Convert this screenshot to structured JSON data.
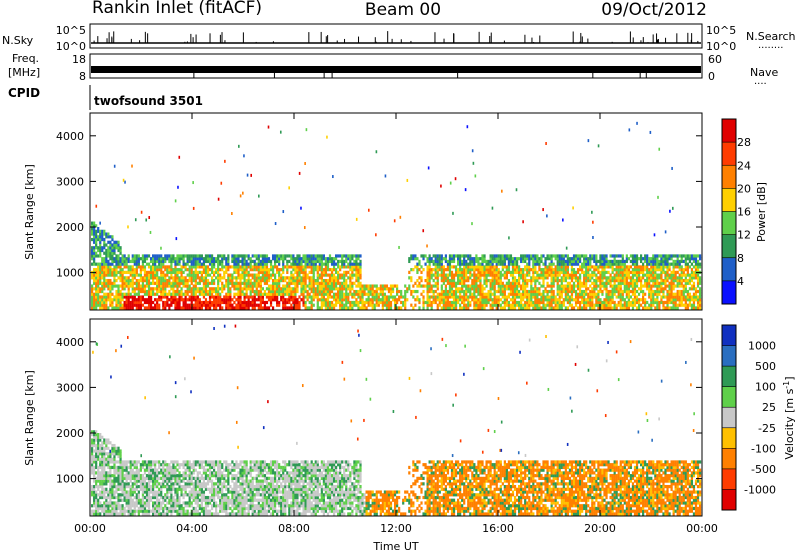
{
  "header": {
    "station": "Rankin Inlet (fitACF)",
    "beam": "Beam 00",
    "date": "09/Oct/2012"
  },
  "panels": {
    "nsky": {
      "label": "N.Sky",
      "ticks": [
        "10^5",
        "10^0"
      ]
    },
    "nsearch": {
      "label": "N.Search",
      "ticks": [
        "10^5",
        "10^0"
      ],
      "dots": "........"
    },
    "freq": {
      "label1": "Freq.",
      "label2": "[MHz]",
      "ticks": [
        "18",
        "8"
      ]
    },
    "nave": {
      "label": "Nave",
      "ticks": [
        "60",
        "0"
      ],
      "dots": "...."
    },
    "cpid": {
      "label": "CPID",
      "value": "twofsound 3501"
    }
  },
  "chart_data": [
    {
      "type": "heatmap",
      "title": "",
      "xlabel": "",
      "ylabel": "Slant Range [km]",
      "xlim": [
        "00:00",
        "00:00"
      ],
      "ylim": [
        180,
        4500
      ],
      "x_ticks": [
        "00:00",
        "04:00",
        "08:00",
        "12:00",
        "16:00",
        "20:00",
        "00:00"
      ],
      "y_ticks": [
        1000,
        2000,
        3000,
        4000
      ],
      "colorbar": {
        "label": "Power [dB]",
        "ticks": [
          "28",
          "24",
          "20",
          "16",
          "12",
          "8",
          "4"
        ],
        "colors": [
          "#e00000",
          "#ff3c00",
          "#ff8000",
          "#ffd000",
          "#5fd04a",
          "#2f9a55",
          "#1f5fc8",
          "#0a10ff"
        ]
      }
    },
    {
      "type": "heatmap",
      "title": "",
      "xlabel": "Time UT",
      "ylabel": "Slant Range [km]",
      "xlim": [
        "00:00",
        "00:00"
      ],
      "ylim": [
        180,
        4500
      ],
      "x_ticks": [
        "00:00",
        "04:00",
        "08:00",
        "12:00",
        "16:00",
        "20:00",
        "00:00"
      ],
      "y_ticks": [
        1000,
        2000,
        3000,
        4000
      ],
      "colorbar": {
        "label": "Velocity [m s",
        "label_sup": "-1",
        "label_end": "]",
        "ticks": [
          "1000",
          "500",
          "100",
          "25",
          "-25",
          "-100",
          "-500",
          "-1000"
        ],
        "colors": [
          "#1030c0",
          "#2a6ec0",
          "#2f9a55",
          "#5fd04a",
          "#c8c8c8",
          "#ffc000",
          "#ff8000",
          "#ff3c00",
          "#e00000"
        ]
      }
    }
  ]
}
